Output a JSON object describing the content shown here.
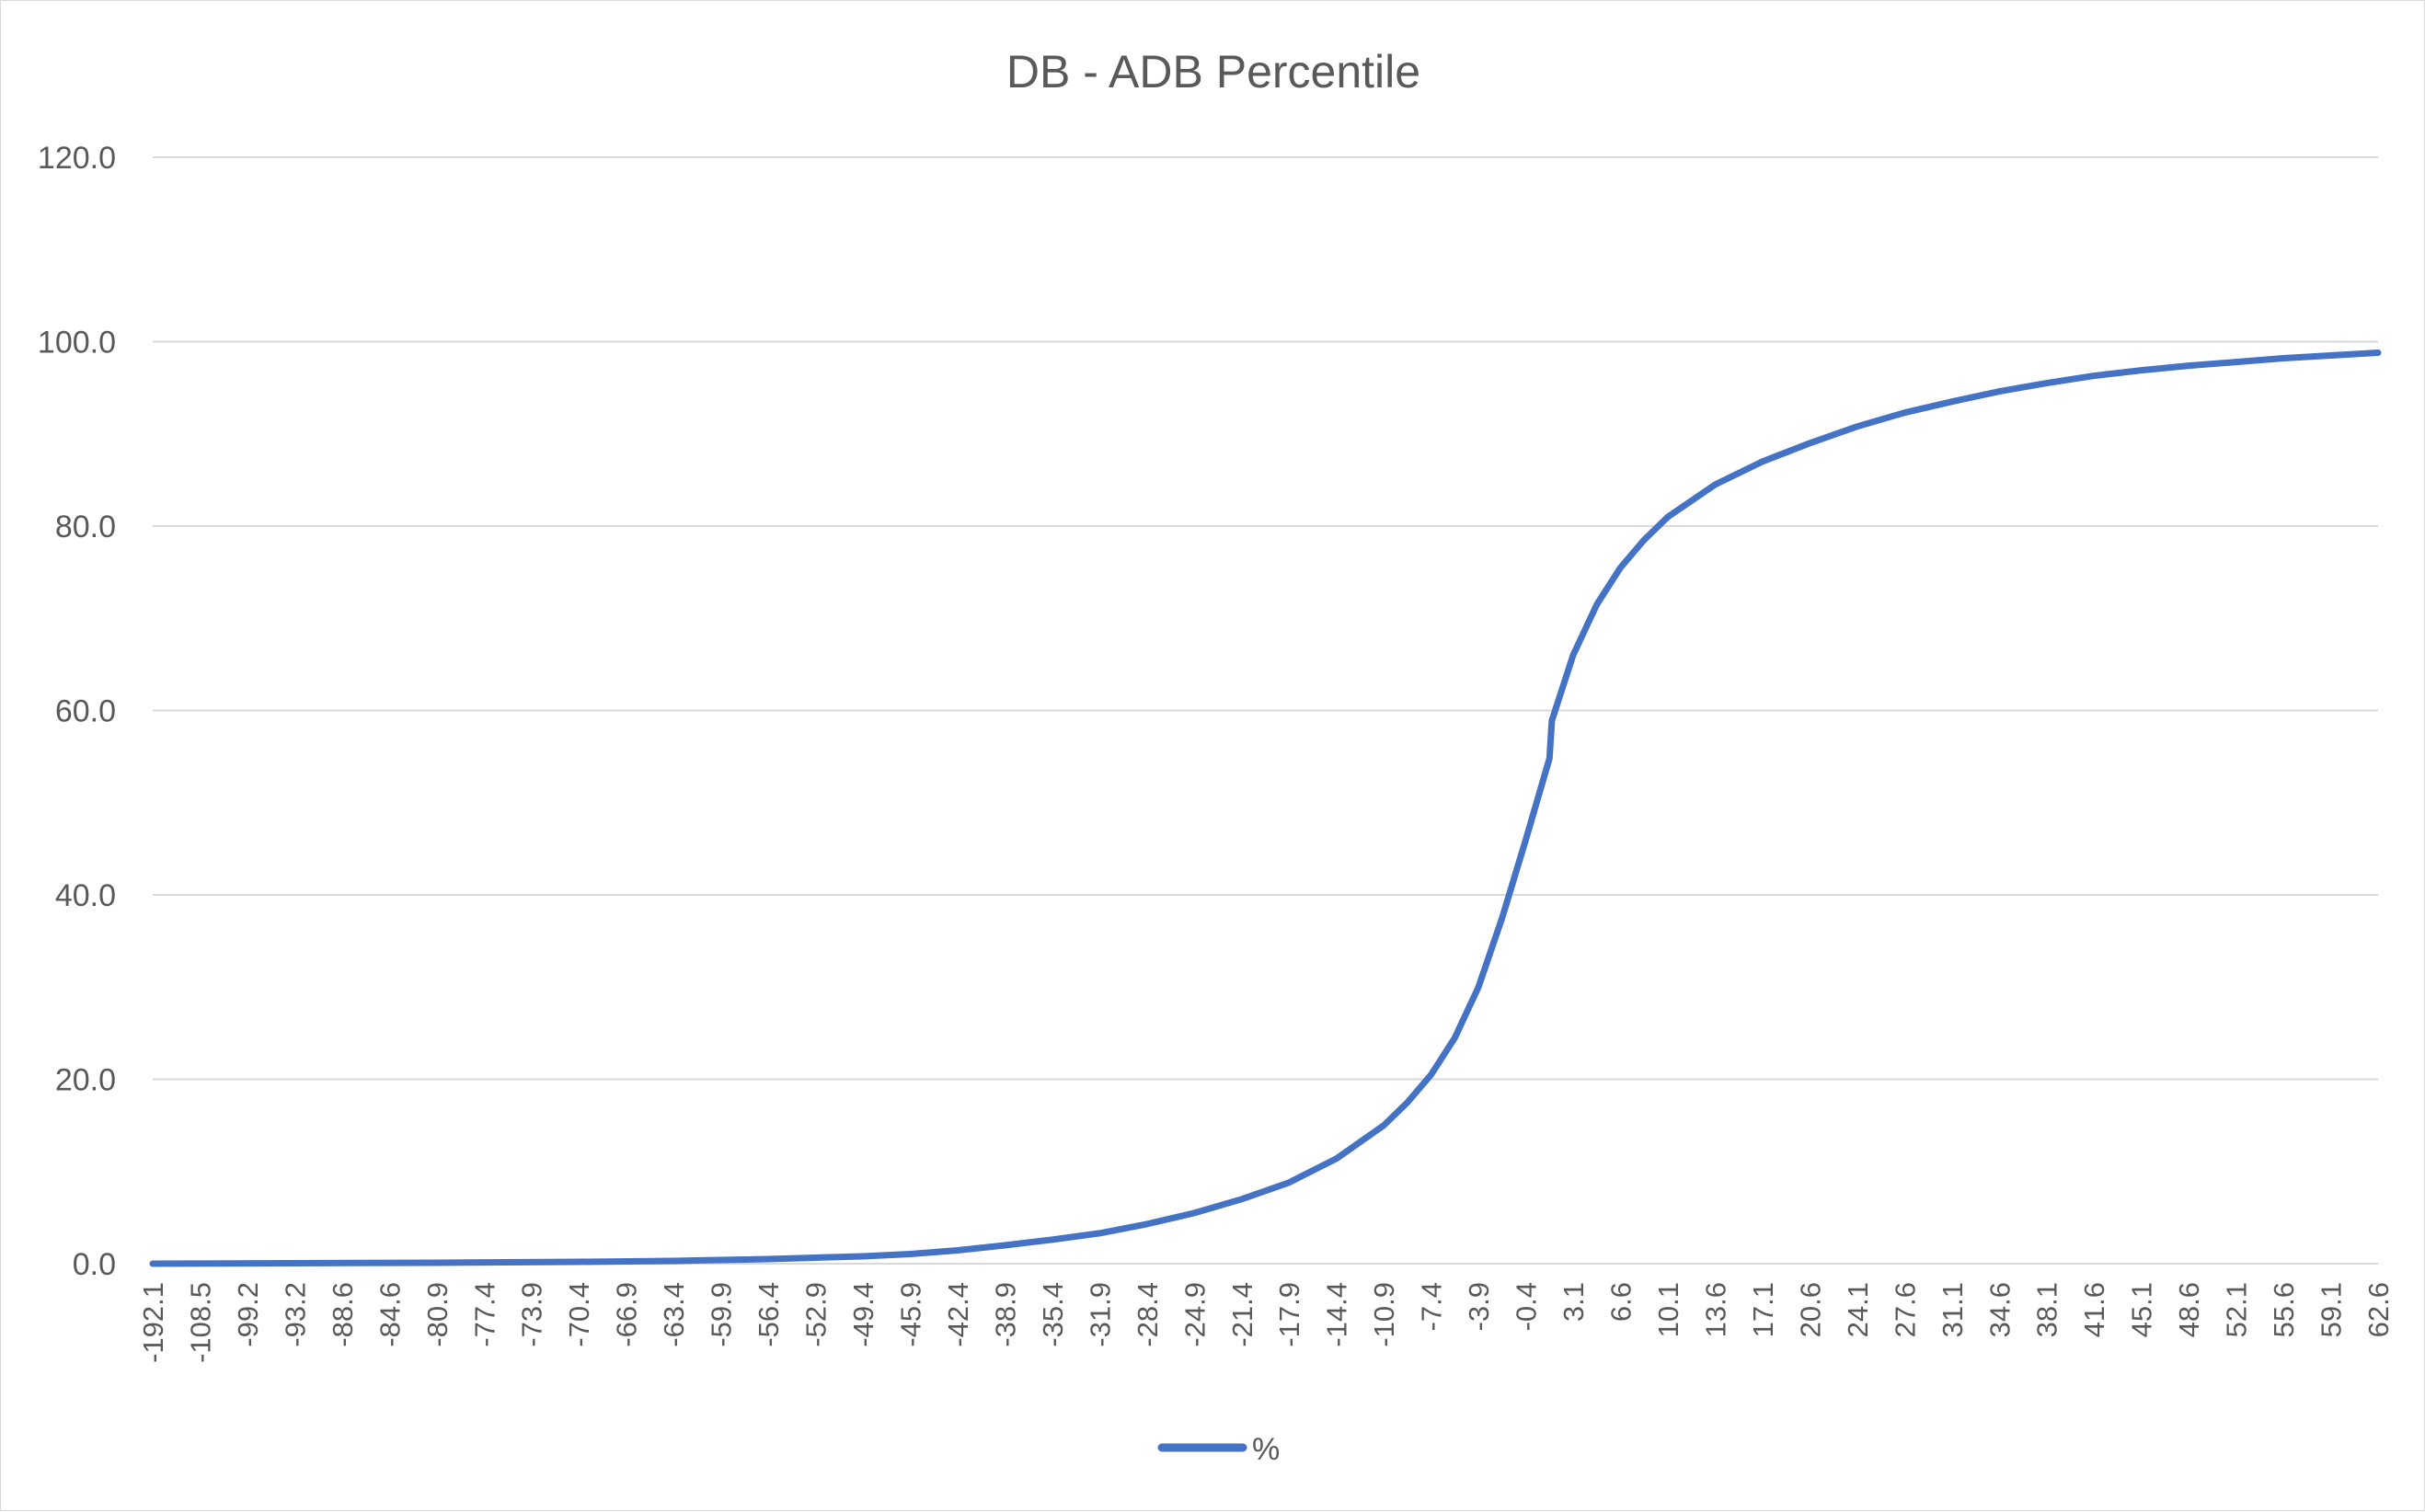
{
  "chart_data": {
    "type": "line",
    "title": "DB - ADB Percentile",
    "ylim": [
      0,
      120
    ],
    "yticks": [
      "0.0",
      "20.0",
      "40.0",
      "60.0",
      "80.0",
      "100.0",
      "120.0"
    ],
    "grid": true,
    "legend_placement": "bottom",
    "line_color": "#4472c4",
    "grid_color": "#d9d9d9",
    "text_color": "#595959",
    "categories": [
      "-192.1",
      "-108.5",
      "-99.2",
      "-93.2",
      "-88.6",
      "-84.6",
      "-80.9",
      "-77.4",
      "-73.9",
      "-70.4",
      "-66.9",
      "-63.4",
      "-59.9",
      "-56.4",
      "-52.9",
      "-49.4",
      "-45.9",
      "-42.4",
      "-38.9",
      "-35.4",
      "-31.9",
      "-28.4",
      "-24.9",
      "-21.4",
      "-17.9",
      "-14.4",
      "-10.9",
      "-7.4",
      "-3.9",
      "-0.4",
      "3.1",
      "6.6",
      "10.1",
      "13.6",
      "17.1",
      "20.6",
      "24.1",
      "27.6",
      "31.1",
      "34.6",
      "38.1",
      "41.6",
      "45.1",
      "48.6",
      "52.1",
      "55.6",
      "59.1",
      "62.6"
    ],
    "series": [
      {
        "name": "%",
        "points": [
          [
            0,
            0.0
          ],
          [
            3,
            0.05
          ],
          [
            6,
            0.1
          ],
          [
            9,
            0.2
          ],
          [
            11,
            0.3
          ],
          [
            12,
            0.4
          ],
          [
            13,
            0.5
          ],
          [
            14,
            0.65
          ],
          [
            15,
            0.8
          ],
          [
            16,
            1.05
          ],
          [
            17,
            1.45
          ],
          [
            18,
            2.0
          ],
          [
            19,
            2.6
          ],
          [
            20,
            3.3
          ],
          [
            21,
            4.3
          ],
          [
            22,
            5.5
          ],
          [
            23,
            7.0
          ],
          [
            24,
            8.8
          ],
          [
            25,
            11.4
          ],
          [
            26,
            15.0
          ],
          [
            26.5,
            17.5
          ],
          [
            27,
            20.5
          ],
          [
            27.5,
            24.5
          ],
          [
            28,
            30.0
          ],
          [
            28.5,
            37.5
          ],
          [
            29,
            46.0
          ],
          [
            29.5,
            54.8
          ],
          [
            29.55,
            58.9
          ],
          [
            30,
            66.0
          ],
          [
            30.5,
            71.5
          ],
          [
            31,
            75.5
          ],
          [
            31.5,
            78.5
          ],
          [
            32,
            81.0
          ],
          [
            33,
            84.5
          ],
          [
            34,
            87.0
          ],
          [
            35,
            89.0
          ],
          [
            36,
            90.8
          ],
          [
            37,
            92.3
          ],
          [
            38,
            93.5
          ],
          [
            39,
            94.6
          ],
          [
            40,
            95.5
          ],
          [
            41,
            96.3
          ],
          [
            42,
            96.9
          ],
          [
            43,
            97.4
          ],
          [
            44,
            97.8
          ],
          [
            45,
            98.2
          ],
          [
            46,
            98.5
          ],
          [
            47,
            98.8
          ]
        ]
      }
    ]
  }
}
